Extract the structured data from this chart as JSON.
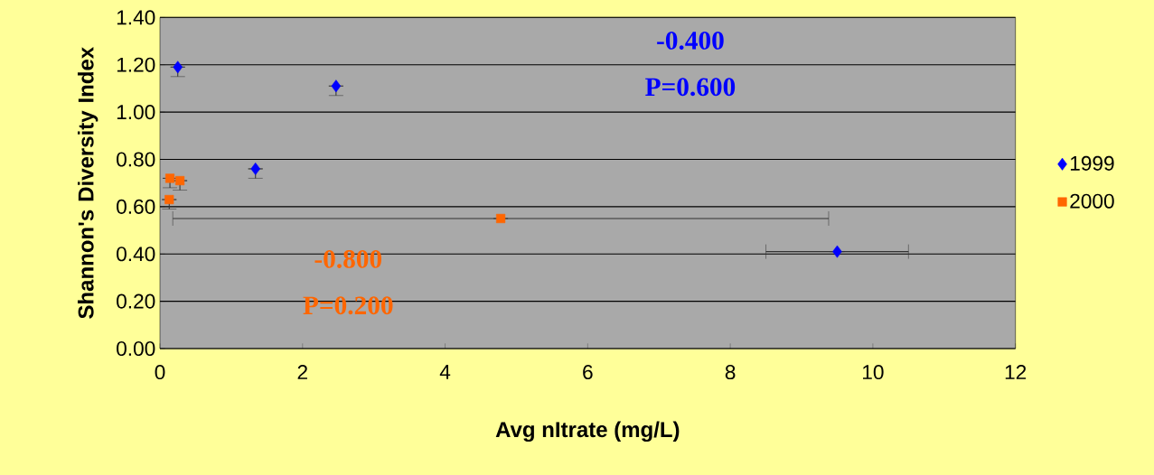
{
  "chart_data": {
    "type": "scatter",
    "xlabel": "Avg nItrate (mg/L)",
    "ylabel": "Shannon's Diversity Index",
    "series": [
      {
        "name": "1999",
        "color": "#0000ff",
        "marker": "diamond",
        "x": [
          0.25,
          1.34,
          2.47,
          9.5
        ],
        "values": [
          1.19,
          0.76,
          1.11,
          0.41
        ],
        "xerrors": [
          null,
          null,
          null,
          1.0
        ],
        "errors": [
          [
            1.15,
            1.19
          ],
          [
            0.72,
            0.76
          ],
          [
            1.07,
            1.11
          ],
          null
        ]
      },
      {
        "name": "2000",
        "color": "#ff6600",
        "marker": "square",
        "x": [
          0.14,
          0.28,
          0.13,
          4.78
        ],
        "values": [
          0.72,
          0.71,
          0.63,
          0.55
        ],
        "xerrors": [
          null,
          null,
          null,
          4.6
        ],
        "errors": [
          [
            0.68,
            0.72
          ],
          [
            0.67,
            0.71
          ],
          [
            0.59,
            0.63
          ],
          null
        ]
      }
    ],
    "annotations": [
      "-0.400",
      "P=0.600",
      "-0.800",
      "P=0.200"
    ],
    "xlim": [
      0,
      12
    ],
    "xticks": [
      0,
      2,
      4,
      6,
      8,
      10,
      12
    ],
    "ylim": [
      0,
      1.4
    ],
    "yticks": [
      {
        "value": 0,
        "label": "0.00"
      },
      {
        "value": 0.2,
        "label": "0.20"
      },
      {
        "value": 0.4,
        "label": "0.40"
      },
      {
        "value": 0.6,
        "label": "0.60"
      },
      {
        "value": 0.8,
        "label": "0.80"
      },
      {
        "value": 1.0,
        "label": "1.00"
      },
      {
        "value": 1.2,
        "label": "1.20"
      },
      {
        "value": 1.4,
        "label": "1.40"
      }
    ],
    "grid": "y",
    "legend": "right"
  }
}
